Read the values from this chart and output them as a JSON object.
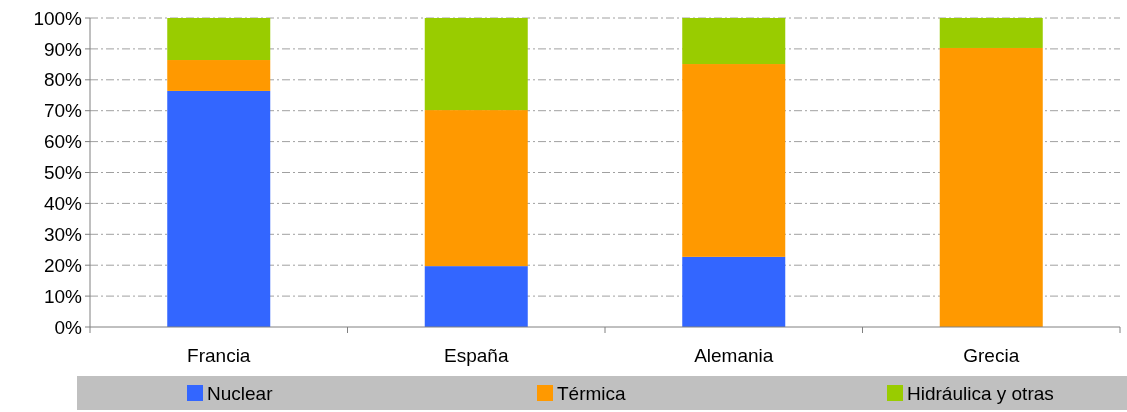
{
  "chart_data": {
    "type": "bar",
    "stacked": true,
    "categories": [
      "Francia",
      "España",
      "Alemania",
      "Grecia"
    ],
    "series": [
      {
        "name": "Nuclear",
        "color": "#3366ff",
        "values": [
          76.4,
          19.7,
          22.7,
          0
        ]
      },
      {
        "name": "Térmica",
        "color": "#ff9900",
        "values": [
          10,
          50.5,
          62.4,
          90.3
        ]
      },
      {
        "name": "Hidráulica y otras",
        "color": "#99cc00",
        "values": [
          13.6,
          29.8,
          14.9,
          9.7
        ]
      }
    ],
    "ylim": [
      0,
      100
    ],
    "yticks": [
      {
        "value": 0,
        "label": "0%"
      },
      {
        "value": 10,
        "label": "10%"
      },
      {
        "value": 20,
        "label": "20%"
      },
      {
        "value": 30,
        "label": "30%"
      },
      {
        "value": 40,
        "label": "40%"
      },
      {
        "value": 50,
        "label": "50%"
      },
      {
        "value": 60,
        "label": "60%"
      },
      {
        "value": 70,
        "label": "70%"
      },
      {
        "value": 80,
        "label": "80%"
      },
      {
        "value": 90,
        "label": "90%"
      },
      {
        "value": 100,
        "label": "100%"
      }
    ],
    "grid": "y",
    "legend": "bottom"
  }
}
